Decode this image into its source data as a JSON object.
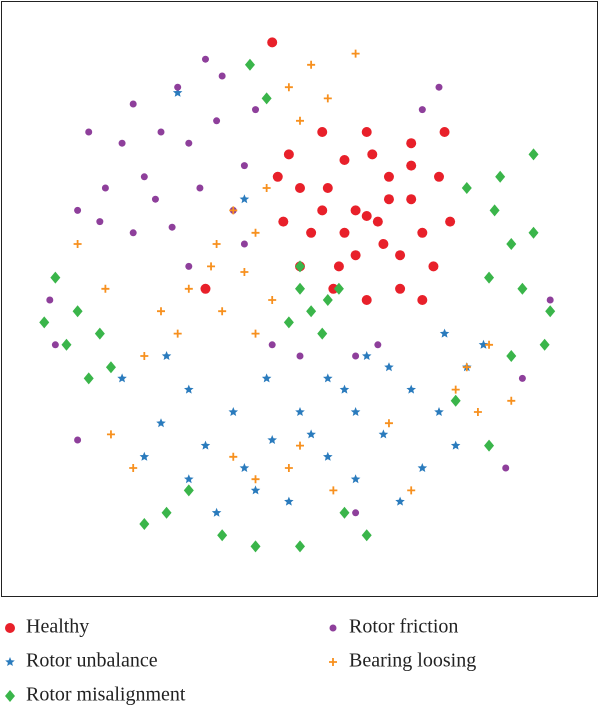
{
  "chart_data": {
    "type": "scatter",
    "legend_position": "bottom",
    "grid": false,
    "xlim": [
      0,
      100
    ],
    "ylim": [
      0,
      100
    ],
    "series": [
      {
        "name": "Healthy",
        "color": "#e8202a",
        "marker": "circle",
        "x": [
          62,
          60,
          64,
          55,
          58,
          66,
          70,
          72,
          68,
          60,
          52,
          50,
          48,
          54,
          62,
          70,
          75,
          77,
          74,
          68,
          62,
          56,
          50,
          47,
          65,
          58,
          66,
          54,
          70,
          63,
          57,
          72,
          45,
          33,
          46,
          76
        ],
        "y": [
          65,
          66,
          64,
          70,
          75,
          72,
          68,
          62,
          58,
          58,
          62,
          70,
          76,
          80,
          80,
          78,
          72,
          64,
          56,
          52,
          50,
          52,
          56,
          64,
          60,
          62,
          68,
          66,
          74,
          76,
          56,
          50,
          96,
          52,
          72,
          80
        ]
      },
      {
        "name": "Rotor unbalance",
        "color": "#2a7bbd",
        "marker": "star",
        "x": [
          38,
          30,
          25,
          22,
          30,
          40,
          45,
          50,
          55,
          60,
          65,
          70,
          75,
          80,
          72,
          68,
          60,
          55,
          48,
          35,
          44,
          62,
          78,
          83,
          26,
          18,
          33,
          52,
          58,
          66,
          76,
          28,
          40,
          42
        ],
        "y": [
          30,
          34,
          28,
          22,
          18,
          20,
          25,
          30,
          36,
          30,
          26,
          34,
          30,
          38,
          20,
          14,
          18,
          22,
          14,
          12,
          36,
          40,
          24,
          42,
          40,
          36,
          24,
          26,
          34,
          38,
          44,
          87,
          68,
          16
        ]
      },
      {
        "name": "Rotor misalignment",
        "color": "#3ab54a",
        "marker": "diamond",
        "x": [
          6,
          10,
          14,
          16,
          12,
          8,
          4,
          50,
          52,
          55,
          48,
          54,
          57,
          50,
          80,
          85,
          88,
          84,
          90,
          92,
          86,
          92,
          95,
          94,
          88,
          30,
          26,
          36,
          42,
          58,
          62,
          50,
          44,
          41,
          84,
          78,
          22
        ],
        "y": [
          54,
          48,
          44,
          38,
          36,
          42,
          46,
          52,
          48,
          50,
          46,
          44,
          52,
          56,
          70,
          66,
          60,
          54,
          52,
          62,
          72,
          76,
          48,
          42,
          40,
          16,
          12,
          8,
          6,
          12,
          8,
          6,
          86,
          92,
          24,
          32,
          10
        ]
      },
      {
        "name": "Rotor friction",
        "color": "#8e3f9b",
        "marker": "dot",
        "x": [
          20,
          25,
          30,
          35,
          28,
          36,
          40,
          22,
          15,
          18,
          32,
          38,
          27,
          20,
          14,
          30,
          42,
          33,
          12,
          10,
          5,
          6,
          64,
          60,
          50,
          45,
          90,
          95,
          87,
          10,
          60,
          72,
          75,
          40,
          24
        ],
        "y": [
          85,
          80,
          78,
          82,
          88,
          90,
          74,
          72,
          70,
          78,
          70,
          66,
          63,
          62,
          64,
          56,
          84,
          93,
          80,
          66,
          50,
          42,
          42,
          40,
          40,
          42,
          36,
          50,
          20,
          25,
          12,
          84,
          88,
          60,
          68
        ]
      },
      {
        "name": "Bearing loosing",
        "color": "#f7901e",
        "marker": "plus",
        "x": [
          38,
          42,
          35,
          40,
          30,
          25,
          36,
          45,
          42,
          28,
          22,
          34,
          44,
          48,
          52,
          60,
          55,
          50,
          80,
          84,
          78,
          82,
          88,
          42,
          38,
          48,
          56,
          50,
          20,
          16,
          66,
          10,
          70,
          15
        ],
        "y": [
          66,
          62,
          60,
          55,
          52,
          48,
          48,
          50,
          44,
          44,
          40,
          56,
          70,
          88,
          92,
          94,
          86,
          82,
          38,
          42,
          34,
          30,
          32,
          18,
          22,
          20,
          16,
          24,
          20,
          26,
          28,
          60,
          16,
          52
        ]
      }
    ]
  }
}
